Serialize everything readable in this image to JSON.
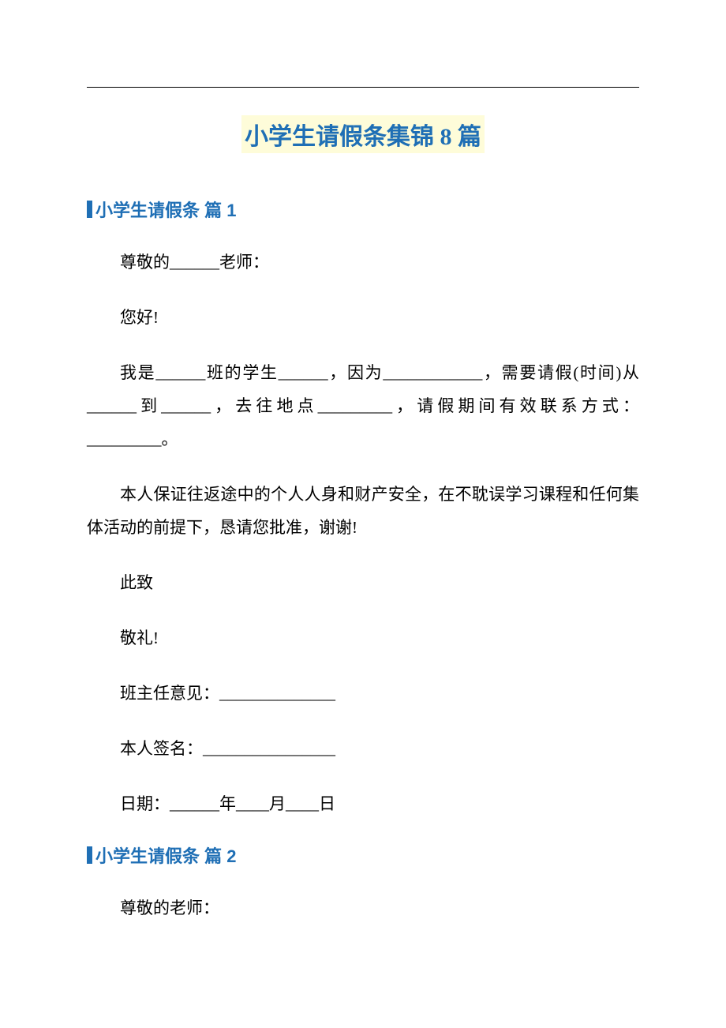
{
  "document": {
    "title": "小学生请假条集锦 8 篇",
    "title_color": "#1f6fb5",
    "title_bg": "#fefcd9",
    "title_fontsize": 30,
    "body_fontsize": 21,
    "body_color": "#000000",
    "section_color": "#1f6fb5",
    "sections": [
      {
        "heading": "小学生请假条 篇 1",
        "paragraphs": [
          "尊敬的______老师：",
          "您好!",
          "我是______班的学生______，因为____________，需要请假(时间)从______到______，去往地点_________，请假期间有效联系方式：_________。",
          "本人保证往返途中的个人人身和财产安全，在不耽误学习课程和任何集体活动的前提下，恳请您批准，谢谢!",
          "此致",
          "敬礼!",
          "班主任意见：______________",
          "本人签名：________________",
          "日期：______年____月____日"
        ]
      },
      {
        "heading": "小学生请假条 篇 2",
        "paragraphs": [
          "尊敬的老师："
        ]
      }
    ]
  }
}
